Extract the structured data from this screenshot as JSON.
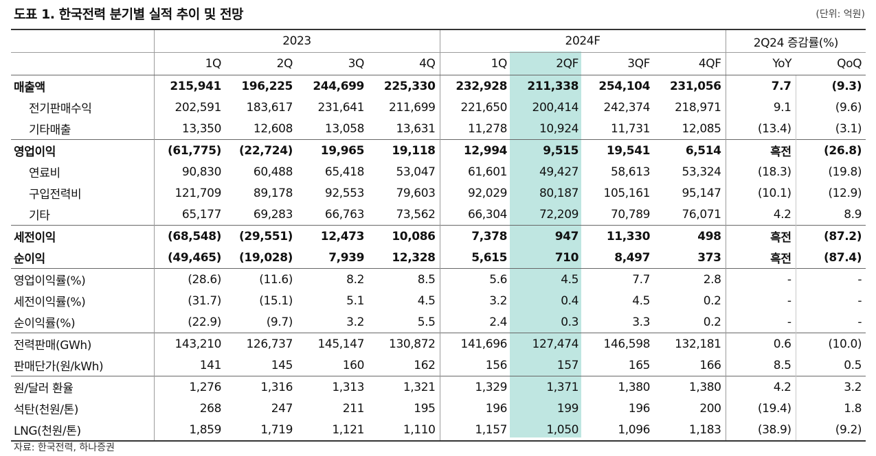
{
  "title": "도표 1. 한국전력 분기별 실적 추이 및 전망",
  "unit": "(단위: 억원)",
  "header": {
    "year_2023": "2023",
    "year_2024": "2024F",
    "change": "2Q24 증감률(%)",
    "quarters": [
      "1Q",
      "2Q",
      "3Q",
      "4Q",
      "1Q",
      "2QF",
      "3QF",
      "4QF",
      "YoY",
      "QoQ"
    ]
  },
  "rows": [
    {
      "label": "매출액",
      "values": [
        "215,941",
        "196,225",
        "244,699",
        "225,330",
        "232,928",
        "211,338",
        "254,104",
        "231,056",
        "7.7",
        "(9.3)"
      ]
    },
    {
      "label": "전기판매수익",
      "values": [
        "202,591",
        "183,617",
        "231,641",
        "211,699",
        "221,650",
        "200,414",
        "242,374",
        "218,971",
        "9.1",
        "(9.6)"
      ]
    },
    {
      "label": "기타매출",
      "values": [
        "13,350",
        "12,608",
        "13,058",
        "13,631",
        "11,278",
        "10,924",
        "11,731",
        "12,085",
        "(13.4)",
        "(3.1)"
      ]
    },
    {
      "label": "영업이익",
      "values": [
        "(61,775)",
        "(22,724)",
        "19,965",
        "19,118",
        "12,994",
        "9,515",
        "19,541",
        "6,514",
        "흑전",
        "(26.8)"
      ]
    },
    {
      "label": "연료비",
      "values": [
        "90,830",
        "60,488",
        "65,418",
        "53,047",
        "61,601",
        "49,427",
        "58,613",
        "53,324",
        "(18.3)",
        "(19.8)"
      ]
    },
    {
      "label": "구입전력비",
      "values": [
        "121,709",
        "89,178",
        "92,553",
        "79,603",
        "92,029",
        "80,187",
        "105,161",
        "95,147",
        "(10.1)",
        "(12.9)"
      ]
    },
    {
      "label": "기타",
      "values": [
        "65,177",
        "69,283",
        "66,763",
        "73,562",
        "66,304",
        "72,209",
        "70,789",
        "76,071",
        "4.2",
        "8.9"
      ]
    },
    {
      "label": "세전이익",
      "values": [
        "(68,548)",
        "(29,551)",
        "12,473",
        "10,086",
        "7,378",
        "947",
        "11,330",
        "498",
        "흑전",
        "(87.2)"
      ]
    },
    {
      "label": "순이익",
      "values": [
        "(49,465)",
        "(19,028)",
        "7,939",
        "12,328",
        "5,615",
        "710",
        "8,497",
        "373",
        "흑전",
        "(87.4)"
      ]
    },
    {
      "label": "영업이익률(%)",
      "values": [
        "(28.6)",
        "(11.6)",
        "8.2",
        "8.5",
        "5.6",
        "4.5",
        "7.7",
        "2.8",
        "-",
        "-"
      ]
    },
    {
      "label": "세전이익률(%)",
      "values": [
        "(31.7)",
        "(15.1)",
        "5.1",
        "4.5",
        "3.2",
        "0.4",
        "4.5",
        "0.2",
        "-",
        "-"
      ]
    },
    {
      "label": "순이익률(%)",
      "values": [
        "(22.9)",
        "(9.7)",
        "3.2",
        "5.5",
        "2.4",
        "0.3",
        "3.3",
        "0.2",
        "-",
        "-"
      ]
    },
    {
      "label": "전력판매(GWh)",
      "values": [
        "143,210",
        "126,737",
        "145,147",
        "130,872",
        "141,696",
        "127,474",
        "146,598",
        "132,181",
        "0.6",
        "(10.0)"
      ]
    },
    {
      "label": "판매단가(원/kWh)",
      "values": [
        "141",
        "145",
        "160",
        "162",
        "156",
        "157",
        "165",
        "166",
        "8.5",
        "0.5"
      ]
    },
    {
      "label": "원/달러 환율",
      "values": [
        "1,276",
        "1,316",
        "1,313",
        "1,321",
        "1,329",
        "1,371",
        "1,380",
        "1,380",
        "4.2",
        "3.2"
      ]
    },
    {
      "label": "석탄(천원/톤)",
      "values": [
        "268",
        "247",
        "211",
        "195",
        "196",
        "199",
        "196",
        "200",
        "(19.4)",
        "1.8"
      ]
    },
    {
      "label": "LNG(천원/톤)",
      "values": [
        "1,859",
        "1,719",
        "1,121",
        "1,110",
        "1,157",
        "1,050",
        "1,096",
        "1,183",
        "(38.9)",
        "(9.2)"
      ]
    }
  ],
  "source": "자료: 한국전력, 하나증권"
}
